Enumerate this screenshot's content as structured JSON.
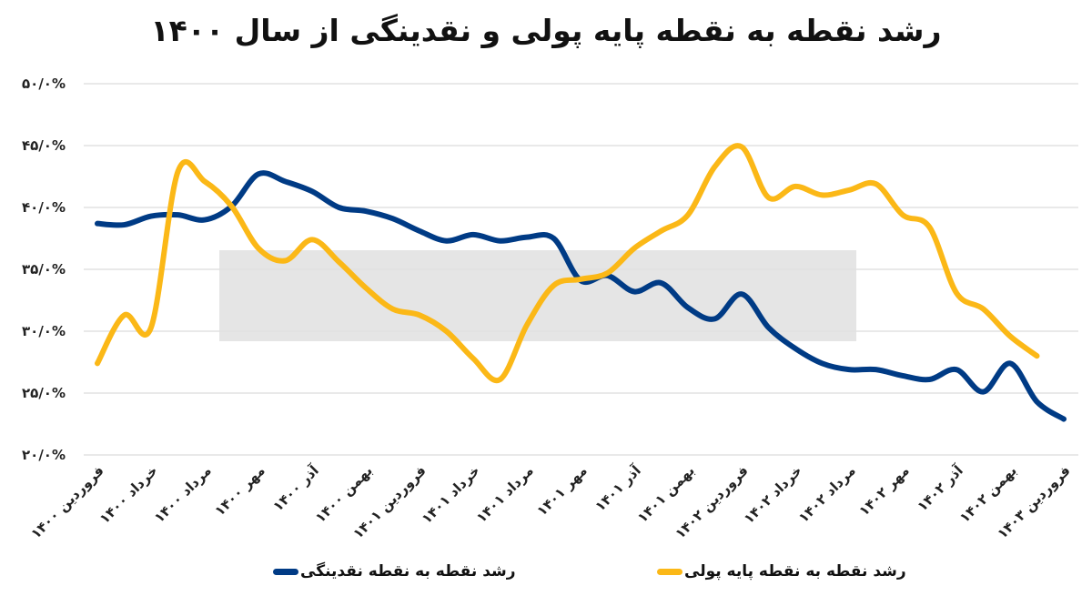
{
  "chart_data": {
    "type": "line",
    "title": "رشد نقطه به نقطه پایه پولی و نقدینگی از سال ۱۴۰۰",
    "x_labels": [
      "فروردین ۱۴۰۰",
      "خرداد ۱۴۰۰",
      "مرداد ۱۴۰۰",
      "مهر ۱۴۰۰",
      "آذر ۱۴۰۰",
      "بهمن ۱۴۰۰",
      "فروردین ۱۴۰۱",
      "خرداد ۱۴۰۱",
      "مرداد ۱۴۰۱",
      "مهر ۱۴۰۱",
      "آذر ۱۴۰۱",
      "بهمن ۱۴۰۱",
      "فروردین ۱۴۰۲",
      "خرداد ۱۴۰۲",
      "مرداد ۱۴۰۲",
      "مهر ۱۴۰۲",
      "آذر ۱۴۰۲",
      "بهمن ۱۴۰۲",
      "فروردین ۱۴۰۳"
    ],
    "x_frequency": "monthly",
    "y_ticks": [
      "۲۰/۰%",
      "۲۵/۰%",
      "۳۰/۰%",
      "۳۵/۰%",
      "۴۰/۰%",
      "۴۵/۰%",
      "۵۰/۰%"
    ],
    "ylim": [
      20,
      50
    ],
    "y_unit": "%",
    "grid": "horizontal",
    "legend_position": "bottom",
    "series": [
      {
        "name": "رشد نقطه به نقطه نقدینگی",
        "color": "#003b85",
        "values": [
          38.7,
          38.6,
          39.3,
          39.4,
          39.0,
          40.1,
          42.7,
          42.1,
          41.3,
          40.0,
          39.7,
          39.1,
          38.1,
          37.3,
          37.8,
          37.3,
          37.6,
          37.5,
          34.1,
          34.5,
          33.2,
          33.9,
          31.9,
          31.0,
          33.0,
          30.3,
          28.6,
          27.4,
          26.9,
          26.9,
          26.4,
          26.1,
          26.9,
          25.1,
          27.4,
          24.3,
          22.9
        ]
      },
      {
        "name": "رشد نقطه به نقطه پایه پولی",
        "color": "#fbb817",
        "values": [
          27.4,
          31.3,
          30.3,
          42.9,
          42.1,
          40.1,
          36.7,
          35.7,
          37.4,
          35.6,
          33.5,
          31.8,
          31.3,
          30.0,
          27.8,
          26.1,
          30.5,
          33.7,
          34.2,
          34.7,
          36.7,
          38.1,
          39.4,
          43.3,
          44.9,
          40.8,
          41.7,
          41.0,
          41.4,
          41.9,
          39.4,
          38.4,
          33.1,
          31.8,
          29.6,
          28.0
        ]
      }
    ]
  }
}
